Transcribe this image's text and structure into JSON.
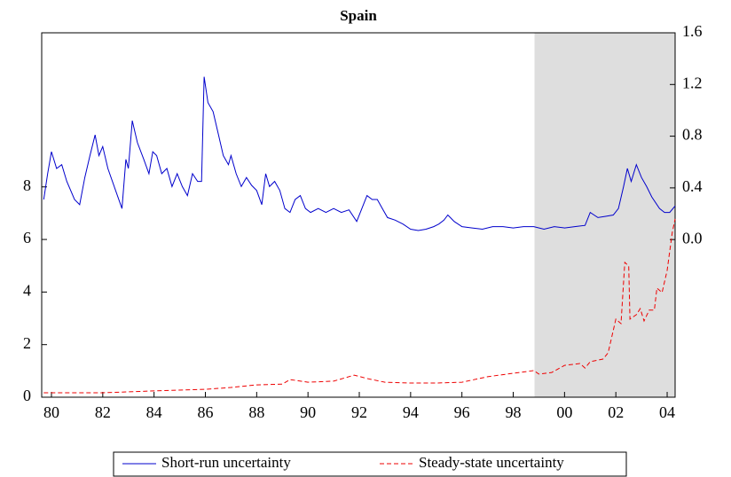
{
  "chart_data": {
    "type": "line",
    "title": "Spain",
    "xlim": [
      1979.62,
      2004.31
    ],
    "xticks": [
      {
        "value": 1980,
        "label": "80"
      },
      {
        "value": 1982,
        "label": "82"
      },
      {
        "value": 1984,
        "label": "84"
      },
      {
        "value": 1986,
        "label": "86"
      },
      {
        "value": 1988,
        "label": "88"
      },
      {
        "value": 1990,
        "label": "90"
      },
      {
        "value": 1992,
        "label": "92"
      },
      {
        "value": 1994,
        "label": "94"
      },
      {
        "value": 1996,
        "label": "96"
      },
      {
        "value": 1998,
        "label": "98"
      },
      {
        "value": 2000,
        "label": "00"
      },
      {
        "value": 2002,
        "label": "02"
      },
      {
        "value": 2004,
        "label": "04"
      }
    ],
    "ylim": [
      0,
      13.86
    ],
    "yticks": [
      0,
      2,
      4,
      6,
      8
    ],
    "y2lim": [
      -1.22,
      1.6
    ],
    "y2ticks": [
      {
        "value": 0,
        "label": "0.0"
      },
      {
        "value": 0.4,
        "label": "0.4"
      },
      {
        "value": 0.8,
        "label": "0.8"
      },
      {
        "value": 1.2,
        "label": "1.2"
      },
      {
        "value": 1.6,
        "label": "1.6"
      }
    ],
    "shade": [
      1998.83,
      2004.31
    ],
    "shade_color": "#dedede",
    "series": [
      {
        "name": "Short-run uncertainty",
        "color": "#0000cc",
        "axis": "y2",
        "dash": false,
        "x": [
          1979.7,
          1979.85,
          1980.0,
          1980.2,
          1980.4,
          1980.6,
          1980.9,
          1981.1,
          1981.3,
          1981.5,
          1981.7,
          1981.85,
          1982.0,
          1982.2,
          1982.5,
          1982.75,
          1982.9,
          1983.0,
          1983.15,
          1983.35,
          1983.6,
          1983.8,
          1983.95,
          1984.1,
          1984.3,
          1984.5,
          1984.7,
          1984.9,
          1985.1,
          1985.3,
          1985.5,
          1985.7,
          1985.85,
          1985.95,
          1986.1,
          1986.3,
          1986.5,
          1986.7,
          1986.9,
          1987.0,
          1987.2,
          1987.4,
          1987.6,
          1987.8,
          1988.0,
          1988.2,
          1988.35,
          1988.5,
          1988.7,
          1988.9,
          1989.1,
          1989.3,
          1989.5,
          1989.7,
          1989.9,
          1990.1,
          1990.4,
          1990.7,
          1991.0,
          1991.3,
          1991.6,
          1991.9,
          1992.1,
          1992.3,
          1992.5,
          1992.7,
          1992.9,
          1993.1,
          1993.4,
          1993.7,
          1994.0,
          1994.3,
          1994.6,
          1994.9,
          1995.1,
          1995.3,
          1995.45,
          1995.7,
          1996.0,
          1996.4,
          1996.8,
          1997.2,
          1997.6,
          1998.0,
          1998.4,
          1998.8,
          1999.2,
          1999.6,
          2000.0,
          2000.4,
          2000.8,
          2001.0,
          2001.3,
          2001.6,
          2001.9,
          2002.1,
          2002.3,
          2002.45,
          2002.6,
          2002.8,
          2003.0,
          2003.2,
          2003.4,
          2003.7,
          2003.9,
          2004.1,
          2004.31
        ],
        "values": [
          0.31,
          0.51,
          0.68,
          0.55,
          0.58,
          0.45,
          0.31,
          0.27,
          0.48,
          0.65,
          0.81,
          0.65,
          0.72,
          0.55,
          0.38,
          0.24,
          0.62,
          0.55,
          0.92,
          0.75,
          0.62,
          0.51,
          0.68,
          0.65,
          0.51,
          0.55,
          0.41,
          0.51,
          0.41,
          0.34,
          0.51,
          0.45,
          0.45,
          1.26,
          1.06,
          0.99,
          0.82,
          0.65,
          0.58,
          0.65,
          0.51,
          0.41,
          0.48,
          0.42,
          0.38,
          0.27,
          0.51,
          0.41,
          0.45,
          0.38,
          0.24,
          0.21,
          0.31,
          0.34,
          0.24,
          0.21,
          0.24,
          0.21,
          0.24,
          0.21,
          0.23,
          0.14,
          0.24,
          0.34,
          0.31,
          0.31,
          0.24,
          0.17,
          0.15,
          0.12,
          0.08,
          0.07,
          0.08,
          0.1,
          0.12,
          0.15,
          0.19,
          0.14,
          0.1,
          0.09,
          0.08,
          0.1,
          0.1,
          0.09,
          0.1,
          0.1,
          0.08,
          0.1,
          0.09,
          0.1,
          0.11,
          0.21,
          0.17,
          0.18,
          0.19,
          0.24,
          0.41,
          0.55,
          0.45,
          0.58,
          0.48,
          0.41,
          0.33,
          0.24,
          0.21,
          0.21,
          0.26
        ]
      },
      {
        "name": "Steady-state uncertainty",
        "color": "#ee0000",
        "axis": "y",
        "dash": true,
        "x": [
          1979.7,
          1980.0,
          1982.0,
          1984.0,
          1986.0,
          1987.0,
          1988.0,
          1989.0,
          1989.3,
          1990.0,
          1991.0,
          1991.8,
          1992.3,
          1993.0,
          1994.0,
          1995.0,
          1996.0,
          1997.0,
          1998.0,
          1998.8,
          1999.0,
          1999.5,
          2000.0,
          2000.6,
          2000.8,
          2001.0,
          2001.5,
          2001.7,
          2002.0,
          2002.2,
          2002.35,
          2002.5,
          2002.55,
          2002.8,
          2002.95,
          2003.1,
          2003.3,
          2003.5,
          2003.6,
          2003.8,
          2004.0,
          2004.2,
          2004.31
        ],
        "values": [
          0.17,
          0.17,
          0.17,
          0.24,
          0.3,
          0.37,
          0.47,
          0.5,
          0.67,
          0.57,
          0.61,
          0.84,
          0.71,
          0.57,
          0.54,
          0.54,
          0.57,
          0.78,
          0.91,
          1.01,
          0.88,
          0.94,
          1.21,
          1.28,
          1.11,
          1.35,
          1.45,
          1.69,
          2.97,
          2.8,
          5.13,
          4.99,
          2.97,
          3.14,
          3.37,
          2.9,
          3.31,
          3.31,
          4.15,
          3.98,
          4.82,
          6.27,
          6.78
        ]
      }
    ]
  }
}
